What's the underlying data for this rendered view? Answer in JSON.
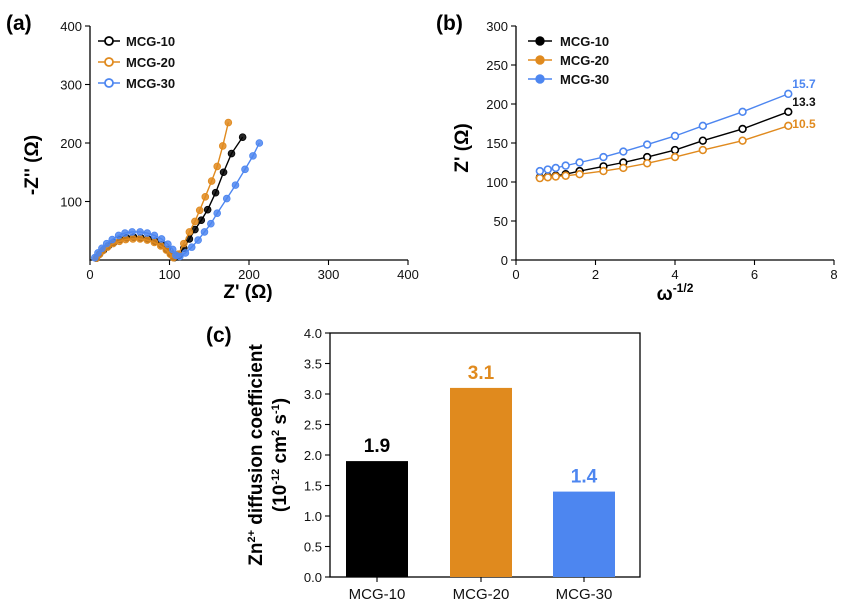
{
  "colors": {
    "MCG-10": "#000000",
    "MCG-20": "#E08A1E",
    "MCG-30": "#4D86F0"
  },
  "chart_data": [
    {
      "panel": "(a)",
      "type": "scatter",
      "xlabel": "Z' (Ω)",
      "ylabel": "-Z'' (Ω)",
      "xlim": [
        0,
        400
      ],
      "ylim": [
        0,
        400
      ],
      "xticks": [
        0,
        100,
        200,
        300,
        400
      ],
      "yticks": [
        100,
        200,
        300,
        400
      ],
      "legend_position": "top-left",
      "series": [
        {
          "name": "MCG-10",
          "points": [
            [
              8,
              3
            ],
            [
              12,
              10
            ],
            [
              17,
              17
            ],
            [
              23,
              24
            ],
            [
              30,
              30
            ],
            [
              38,
              35
            ],
            [
              46,
              38
            ],
            [
              55,
              39
            ],
            [
              64,
              38
            ],
            [
              73,
              36
            ],
            [
              82,
              32
            ],
            [
              90,
              26
            ],
            [
              97,
              18
            ],
            [
              102,
              10
            ],
            [
              106,
              4
            ],
            [
              112,
              8
            ],
            [
              118,
              20
            ],
            [
              125,
              36
            ],
            [
              132,
              52
            ],
            [
              140,
              68
            ],
            [
              148,
              86
            ],
            [
              158,
              115
            ],
            [
              168,
              150
            ],
            [
              178,
              182
            ],
            [
              192,
              210
            ]
          ]
        },
        {
          "name": "MCG-20",
          "points": [
            [
              8,
              3
            ],
            [
              12,
              10
            ],
            [
              16,
              16
            ],
            [
              22,
              22
            ],
            [
              29,
              28
            ],
            [
              37,
              32
            ],
            [
              45,
              35
            ],
            [
              54,
              36
            ],
            [
              63,
              36
            ],
            [
              72,
              34
            ],
            [
              81,
              30
            ],
            [
              89,
              24
            ],
            [
              96,
              17
            ],
            [
              101,
              10
            ],
            [
              105,
              4
            ],
            [
              111,
              10
            ],
            [
              118,
              28
            ],
            [
              125,
              48
            ],
            [
              132,
              66
            ],
            [
              138,
              85
            ],
            [
              145,
              108
            ],
            [
              153,
              135
            ],
            [
              160,
              160
            ],
            [
              167,
              195
            ],
            [
              174,
              235
            ]
          ]
        },
        {
          "name": "MCG-30",
          "points": [
            [
              6,
              4
            ],
            [
              10,
              12
            ],
            [
              15,
              20
            ],
            [
              21,
              28
            ],
            [
              28,
              35
            ],
            [
              36,
              42
            ],
            [
              44,
              46
            ],
            [
              53,
              48
            ],
            [
              63,
              48
            ],
            [
              72,
              46
            ],
            [
              81,
              42
            ],
            [
              90,
              36
            ],
            [
              98,
              27
            ],
            [
              104,
              18
            ],
            [
              108,
              8
            ],
            [
              113,
              6
            ],
            [
              120,
              12
            ],
            [
              128,
              22
            ],
            [
              136,
              34
            ],
            [
              144,
              48
            ],
            [
              152,
              62
            ],
            [
              160,
              80
            ],
            [
              172,
              105
            ],
            [
              183,
              128
            ],
            [
              195,
              155
            ],
            [
              205,
              178
            ],
            [
              213,
              200
            ]
          ]
        }
      ]
    },
    {
      "panel": "(b)",
      "type": "line",
      "xlabel": "ω-1/2",
      "ylabel": "Z' (Ω)",
      "xlim": [
        0,
        8
      ],
      "ylim": [
        0,
        300
      ],
      "xticks": [
        0,
        2,
        4,
        6,
        8
      ],
      "yticks": [
        0,
        50,
        100,
        150,
        200,
        250,
        300
      ],
      "legend_position": "top-left",
      "x": [
        0.6,
        0.8,
        1.0,
        1.25,
        1.6,
        2.2,
        2.7,
        3.3,
        4.0,
        4.7,
        5.7,
        6.85
      ],
      "series": [
        {
          "name": "MCG-10",
          "values": [
            106,
            107,
            108,
            110,
            114,
            120,
            125,
            132,
            141,
            153,
            168,
            190
          ],
          "end_label": "13.3"
        },
        {
          "name": "MCG-20",
          "values": [
            105,
            106,
            107,
            108,
            110,
            114,
            118,
            124,
            132,
            141,
            153,
            172
          ],
          "end_label": "10.5"
        },
        {
          "name": "MCG-30",
          "values": [
            114,
            116,
            118,
            121,
            125,
            132,
            139,
            148,
            159,
            172,
            190,
            213
          ],
          "end_label": "15.7"
        }
      ]
    },
    {
      "panel": "(c)",
      "type": "bar",
      "ylabel_line1": "Zn2+ diffusion coefficient",
      "ylabel_line2": "(10-12 cm2 s-1)",
      "ylim": [
        0,
        4.0
      ],
      "yticks": [
        "0.0",
        "0.5",
        "1.0",
        "1.5",
        "2.0",
        "2.5",
        "3.0",
        "3.5",
        "4.0"
      ],
      "categories": [
        "MCG-10",
        "MCG-20",
        "MCG-30"
      ],
      "values": [
        1.9,
        3.1,
        1.4
      ],
      "value_labels": [
        "1.9",
        "3.1",
        "1.4"
      ]
    }
  ]
}
